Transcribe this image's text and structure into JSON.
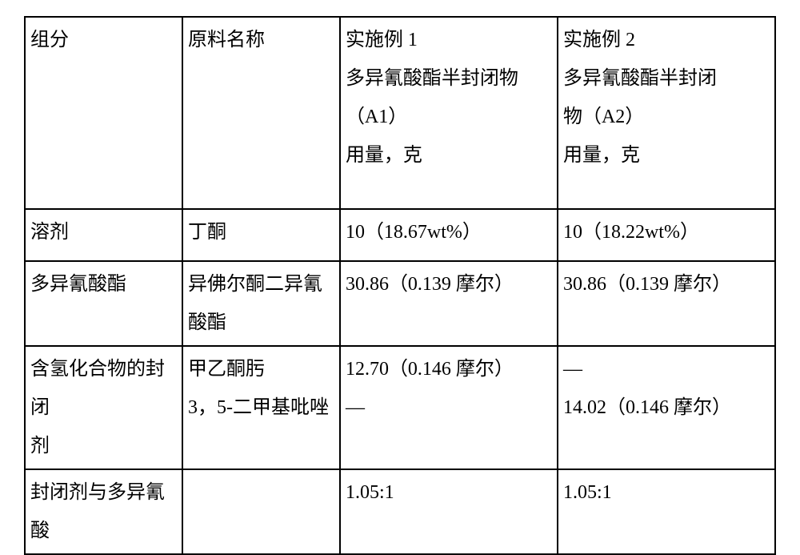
{
  "font": {
    "family": "SimSun",
    "size_pt": 18,
    "color": "#000000"
  },
  "border_color": "#000000",
  "background_color": "#ffffff",
  "columns": [
    {
      "width_pct": 21
    },
    {
      "width_pct": 21
    },
    {
      "width_pct": 29
    },
    {
      "width_pct": 29
    }
  ],
  "header": {
    "c0": "组分",
    "c1": "原料名称",
    "c2": {
      "l1": "实施例 1",
      "l2": "多异氰酸酯半封闭物",
      "l3": "（A1）",
      "l4": "用量，克"
    },
    "c3": {
      "l1": "实施例 2",
      "l2": "多异氰酸酯半封闭",
      "l3": "物（A2）",
      "l4": "用量，克"
    }
  },
  "rows": [
    {
      "c0": "溶剂",
      "c1": "丁酮",
      "c2": "10（18.67wt%）",
      "c3": "10（18.22wt%）"
    },
    {
      "c0": "多异氰酸酯",
      "c1": "异佛尔酮二异氰酸酯",
      "c2": "30.86（0.139 摩尔）",
      "c3": "30.86（0.139 摩尔）"
    },
    {
      "c0": {
        "l1": "含氢化合物的封闭",
        "l2": "剂"
      },
      "c1": {
        "l1": "甲乙酮肟",
        "l2": "3，5-二甲基吡唑"
      },
      "c2": {
        "l1": "12.70（0.146 摩尔）",
        "l2": "—"
      },
      "c3": {
        "l1": "—",
        "l2": "14.02（0.146 摩尔）"
      }
    },
    {
      "c0": "封闭剂与多异氰酸",
      "c1": "",
      "c2": "1.05:1",
      "c3": "1.05:1"
    }
  ]
}
